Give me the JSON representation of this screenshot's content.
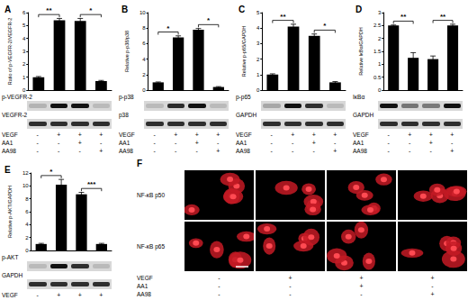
{
  "chart_data": [
    {
      "type": "bar",
      "panel": "A",
      "y_label": "Ratio of p-VEGFR-2/VEGFR-2",
      "categories": [
        null,
        null,
        null,
        null
      ],
      "values": [
        1,
        5.4,
        5.35,
        0.7
      ],
      "errors": [
        0.05,
        0.15,
        0.2,
        0.05
      ],
      "ylim": [
        0,
        6
      ],
      "yticks": [
        0,
        1,
        2,
        3,
        4,
        5,
        6
      ],
      "color": "#000000",
      "tick_labels": "y",
      "annotations": [
        {
          "from": 0,
          "to": 1,
          "text": "**"
        },
        {
          "from": 2,
          "to": 3,
          "text": "*"
        }
      ],
      "blots": [
        "p-VEGFR-2",
        "VEGFR-2"
      ]
    },
    {
      "type": "bar",
      "panel": "B",
      "y_label": "Relative p-p38/p38",
      "categories": [
        null,
        null,
        null,
        null
      ],
      "values": [
        1,
        6.8,
        7.8,
        0.4
      ],
      "errors": [
        0.05,
        0.2,
        0.15,
        0.05
      ],
      "ylim": [
        0,
        10
      ],
      "yticks": [
        0,
        2,
        4,
        6,
        8,
        10
      ],
      "color": "#000000",
      "tick_labels": "y",
      "annotations": [
        {
          "from": 0,
          "to": 1,
          "text": "*"
        },
        {
          "from": 2,
          "to": 3,
          "text": "*"
        }
      ],
      "blots": [
        "p-p38",
        "p38"
      ]
    },
    {
      "type": "bar",
      "panel": "C",
      "y_label": "Relative p-p65/GAPDH",
      "categories": [
        null,
        null,
        null,
        null
      ],
      "values": [
        1,
        4.1,
        3.5,
        0.5
      ],
      "errors": [
        0.05,
        0.15,
        0.12,
        0.05
      ],
      "ylim": [
        0,
        5
      ],
      "yticks": [
        0,
        1,
        2,
        3,
        4,
        5
      ],
      "color": "#000000",
      "tick_labels": "y",
      "annotations": [
        {
          "from": 0,
          "to": 1,
          "text": "**"
        },
        {
          "from": 2,
          "to": 3,
          "text": "*"
        }
      ],
      "blots": [
        "p-p65",
        "GAPDH"
      ]
    },
    {
      "type": "bar",
      "panel": "D",
      "y_label": "Relative IκBα/GAPDH",
      "categories": [
        null,
        null,
        null,
        null
      ],
      "values": [
        2.5,
        1.25,
        1.2,
        2.5
      ],
      "errors": [
        0.02,
        0.2,
        0.12,
        0.05
      ],
      "ylim": [
        0,
        3
      ],
      "yticks": [
        0,
        0.5,
        1,
        1.5,
        2,
        2.5,
        3
      ],
      "color": "#000000",
      "tick_labels": "y",
      "annotations": [
        {
          "from": 0,
          "to": 1,
          "text": "**"
        },
        {
          "from": 2,
          "to": 3,
          "text": "**"
        }
      ],
      "blots": [
        "IκBα",
        "GAPDH"
      ]
    },
    {
      "type": "bar",
      "panel": "E",
      "y_label": "Relative p-AKT/GAPDH",
      "categories": [
        null,
        null,
        null,
        null
      ],
      "values": [
        1,
        10.2,
        8.7,
        1
      ],
      "errors": [
        0.1,
        0.8,
        0.3,
        0.1
      ],
      "ylim": [
        0,
        12
      ],
      "yticks": [
        0,
        2,
        4,
        6,
        8,
        10,
        12
      ],
      "color": "#000000",
      "tick_labels": "y",
      "annotations": [
        {
          "from": 0,
          "to": 1,
          "text": "*"
        },
        {
          "from": 2,
          "to": 3,
          "text": "***"
        }
      ],
      "blots": [
        "p-AKT",
        "GAPDH"
      ]
    }
  ],
  "treatments": [
    {
      "label": "VEGF",
      "signs": [
        "-",
        "+",
        "+",
        "+"
      ]
    },
    {
      "label": "AA1",
      "signs": [
        "-",
        "-",
        "+",
        "-"
      ]
    },
    {
      "label": "AA98",
      "signs": [
        "-",
        "-",
        "-",
        "+"
      ]
    }
  ],
  "image_panel": {
    "panel": "F",
    "rows": [
      "NF-κB p50",
      "NF-κB p65"
    ]
  }
}
